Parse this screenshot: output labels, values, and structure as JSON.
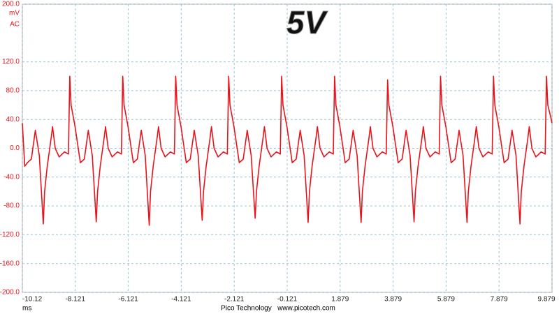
{
  "chart_data": {
    "type": "line",
    "title": "5V",
    "y_unit": "mV",
    "coupling": "AC",
    "x_unit": "ms",
    "footer": "Pico Technology   www.picotech.com",
    "x": [
      -10.12,
      -10.03,
      -9.93,
      -9.78,
      -9.63,
      -9.48,
      -9.33,
      -9.28,
      -9.18,
      -9.03,
      -8.98,
      -8.88,
      -8.73,
      -8.53,
      -8.38,
      -8.33,
      -8.28,
      -8.13,
      -7.93,
      -7.78,
      -7.63,
      -7.48,
      -7.33,
      -7.28,
      -7.18,
      -7.03,
      -6.98,
      -6.88,
      -6.73,
      -6.53,
      -6.38,
      -6.33,
      -6.28,
      -6.13,
      -5.93,
      -5.78,
      -5.63,
      -5.48,
      -5.33,
      -5.28,
      -5.18,
      -5.03,
      -4.98,
      -4.88,
      -4.73,
      -4.53,
      -4.38,
      -4.33,
      -4.28,
      -4.13,
      -3.93,
      -3.78,
      -3.63,
      -3.48,
      -3.33,
      -3.28,
      -3.18,
      -3.03,
      -2.98,
      -2.88,
      -2.73,
      -2.53,
      -2.38,
      -2.33,
      -2.28,
      -2.13,
      -1.93,
      -1.78,
      -1.63,
      -1.48,
      -1.33,
      -1.28,
      -1.18,
      -1.03,
      -0.98,
      -0.88,
      -0.73,
      -0.53,
      -0.38,
      -0.33,
      -0.28,
      -0.13,
      0.07,
      0.22,
      0.37,
      0.52,
      0.67,
      0.72,
      0.82,
      0.97,
      1.02,
      1.12,
      1.27,
      1.47,
      1.62,
      1.67,
      1.72,
      1.87,
      2.07,
      2.22,
      2.37,
      2.52,
      2.67,
      2.72,
      2.82,
      2.97,
      3.02,
      3.12,
      3.27,
      3.47,
      3.62,
      3.67,
      3.72,
      3.87,
      4.07,
      4.22,
      4.37,
      4.52,
      4.67,
      4.72,
      4.82,
      4.97,
      5.02,
      5.12,
      5.27,
      5.47,
      5.62,
      5.67,
      5.72,
      5.87,
      6.07,
      6.22,
      6.37,
      6.52,
      6.67,
      6.72,
      6.82,
      6.97,
      7.02,
      7.12,
      7.27,
      7.47,
      7.62,
      7.67,
      7.72,
      7.87,
      8.07,
      8.22,
      8.37,
      8.52,
      8.67,
      8.72,
      8.82,
      8.97,
      9.02,
      9.12,
      9.27,
      9.47,
      9.62,
      9.67,
      9.72,
      9.82,
      9.879
    ],
    "series": [
      {
        "color": "#e8141c",
        "values": [
          35,
          -25,
          -20,
          -15,
          25,
          -10,
          -105,
          -60,
          -25,
          15,
          30,
          0,
          -12,
          -5,
          -8,
          100,
          60,
          30,
          -20,
          -15,
          25,
          -10,
          -102,
          -60,
          -25,
          15,
          30,
          0,
          -12,
          -5,
          -8,
          100,
          60,
          30,
          -20,
          -15,
          25,
          -10,
          -107,
          -60,
          -25,
          15,
          30,
          0,
          -12,
          -5,
          -8,
          100,
          60,
          30,
          -20,
          -15,
          25,
          -10,
          -100,
          -60,
          -25,
          15,
          30,
          0,
          -12,
          -5,
          -8,
          100,
          60,
          30,
          -20,
          -15,
          25,
          -10,
          -97,
          -60,
          -25,
          15,
          30,
          0,
          -12,
          -5,
          -8,
          100,
          60,
          30,
          -20,
          -15,
          25,
          -10,
          -103,
          -60,
          -25,
          15,
          30,
          0,
          -12,
          -5,
          -8,
          100,
          60,
          30,
          -20,
          -15,
          25,
          -10,
          -103,
          -60,
          -25,
          15,
          30,
          0,
          -12,
          -5,
          -8,
          95,
          60,
          30,
          -20,
          -15,
          25,
          -10,
          -102,
          -60,
          -25,
          15,
          30,
          0,
          -12,
          -5,
          -8,
          100,
          60,
          30,
          -20,
          -15,
          25,
          -10,
          -103,
          -60,
          -25,
          15,
          30,
          0,
          -12,
          -5,
          -8,
          100,
          60,
          30,
          -20,
          -15,
          25,
          -10,
          -105,
          -60,
          -25,
          15,
          30,
          0,
          -12,
          -5,
          -8,
          100,
          60,
          45,
          35
        ]
      }
    ],
    "xlim": [
      -10.12,
      9.879
    ],
    "xticks": [
      -10.12,
      -8.121,
      -6.121,
      -4.121,
      -2.121,
      -0.121,
      1.879,
      3.879,
      5.879,
      7.879,
      9.879
    ],
    "ylim": [
      -200,
      200
    ],
    "yticks": [
      {
        "value": 200,
        "label": "200.0"
      },
      {
        "value": 120,
        "label": "120.0"
      },
      {
        "value": 80,
        "label": "80.0"
      },
      {
        "value": 40,
        "label": "40.0"
      },
      {
        "value": 0,
        "label": "0.0"
      },
      {
        "value": -40,
        "label": "-40.0"
      },
      {
        "value": -80,
        "label": "-80.0"
      },
      {
        "value": -120,
        "label": "-120.0"
      },
      {
        "value": -160,
        "label": "-160.0"
      },
      {
        "value": -200,
        "label": "-200.0"
      }
    ],
    "grid": true
  }
}
